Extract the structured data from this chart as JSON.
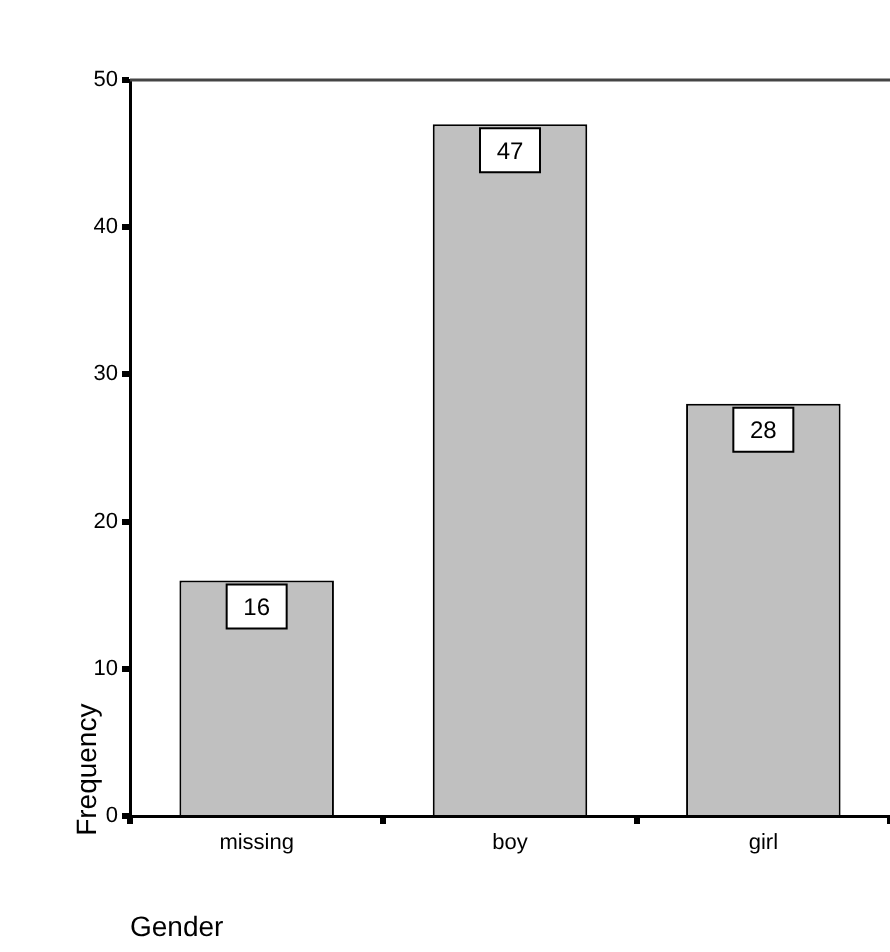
{
  "chart_data": {
    "type": "bar",
    "xlabel": "Gender",
    "ylabel": "Frequency",
    "categories": [
      "missing",
      "boy",
      "girl"
    ],
    "values": [
      16,
      47,
      28
    ],
    "color": "#c0c0c0",
    "ylim": [
      0,
      50
    ],
    "yticks": [
      0,
      10,
      20,
      30,
      40,
      50
    ],
    "data_labels": true,
    "grid": false,
    "legend": false
  }
}
